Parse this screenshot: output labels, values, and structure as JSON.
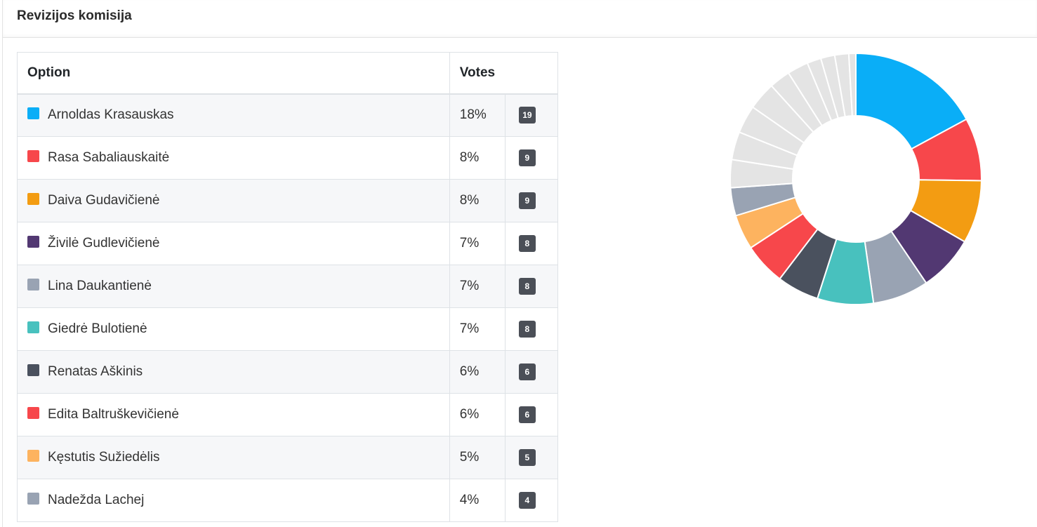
{
  "card": {
    "title": "Revizijos komisija"
  },
  "table": {
    "headers": {
      "option": "Option",
      "votes": "Votes"
    },
    "rows": [
      {
        "name": "Arnoldas Krasauskas",
        "percent": "18%",
        "votes": "19",
        "color": "#0aaef7"
      },
      {
        "name": "Rasa Sabaliauskaitė",
        "percent": "8%",
        "votes": "9",
        "color": "#f7474b"
      },
      {
        "name": "Daiva Gudavičienė",
        "percent": "8%",
        "votes": "9",
        "color": "#f39c12"
      },
      {
        "name": "Živilė Gudlevičienė",
        "percent": "7%",
        "votes": "8",
        "color": "#523872"
      },
      {
        "name": "Lina Daukantienė",
        "percent": "7%",
        "votes": "8",
        "color": "#99a3b3"
      },
      {
        "name": "Giedrė Bulotienė",
        "percent": "7%",
        "votes": "8",
        "color": "#48c1be"
      },
      {
        "name": "Renatas Aškinis",
        "percent": "6%",
        "votes": "6",
        "color": "#4a515e"
      },
      {
        "name": "Edita Baltruškevičienė",
        "percent": "6%",
        "votes": "6",
        "color": "#f7474b"
      },
      {
        "name": "Kęstutis Sužiedėlis",
        "percent": "5%",
        "votes": "5",
        "color": "#fdb35f"
      },
      {
        "name": "Nadežda Lachej",
        "percent": "4%",
        "votes": "4",
        "color": "#99a3b3"
      }
    ]
  },
  "chart_data": {
    "type": "pie",
    "donut": true,
    "legend": "none",
    "slices": [
      {
        "label": "Arnoldas Krasauskas",
        "value": 19,
        "color": "#0aaef7"
      },
      {
        "label": "Rasa Sabaliauskaitė",
        "value": 9,
        "color": "#f7474b"
      },
      {
        "label": "Daiva Gudavičienė",
        "value": 9,
        "color": "#f39c12"
      },
      {
        "label": "Živilė Gudlevičienė",
        "value": 8,
        "color": "#523872"
      },
      {
        "label": "Lina Daukantienė",
        "value": 8,
        "color": "#99a3b3"
      },
      {
        "label": "Giedrė Bulotienė",
        "value": 8,
        "color": "#48c1be"
      },
      {
        "label": "Renatas Aškinis",
        "value": 6,
        "color": "#4a515e"
      },
      {
        "label": "Edita Baltruškevičienė",
        "value": 6,
        "color": "#f7474b"
      },
      {
        "label": "Kęstutis Sužiedėlis",
        "value": 5,
        "color": "#fdb35f"
      },
      {
        "label": "Nadežda Lachej",
        "value": 4,
        "color": "#99a3b3"
      },
      {
        "label": "",
        "value": 4,
        "color": "#e4e4e4"
      },
      {
        "label": "",
        "value": 4,
        "color": "#e4e4e4"
      },
      {
        "label": "",
        "value": 4,
        "color": "#e4e4e4"
      },
      {
        "label": "",
        "value": 4,
        "color": "#e4e4e4"
      },
      {
        "label": "",
        "value": 3,
        "color": "#e4e4e4"
      },
      {
        "label": "",
        "value": 3,
        "color": "#e4e4e4"
      },
      {
        "label": "",
        "value": 2,
        "color": "#e4e4e4"
      },
      {
        "label": "",
        "value": 2,
        "color": "#e4e4e4"
      },
      {
        "label": "",
        "value": 2,
        "color": "#e4e4e4"
      },
      {
        "label": "",
        "value": 1,
        "color": "#e4e4e4"
      }
    ]
  }
}
